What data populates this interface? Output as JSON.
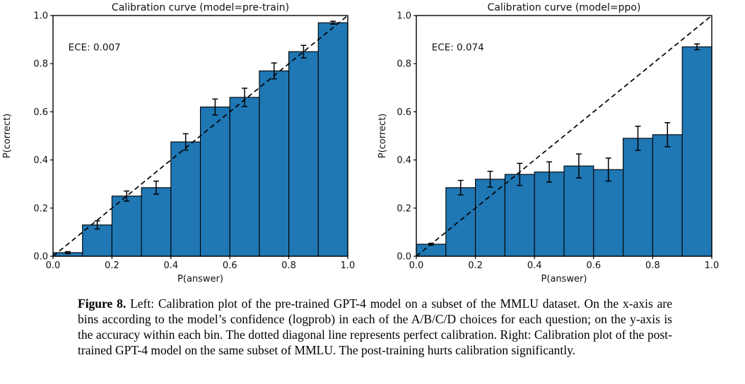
{
  "figure": {
    "caption_label": "Figure 8.",
    "caption_text": "Left: Calibration plot of the pre-trained GPT-4 model on a subset of the MMLU dataset. On the x-axis are bins according to the model’s confidence (logprob) in each of the A/B/C/D choices for each question; on the y-axis is the accuracy within each bin. The dotted diagonal line represents perfect calibration. Right: Calibration plot of the post-trained GPT-4 model on the same subset of MMLU. The post-training hurts calibration significantly."
  },
  "chart_data": [
    {
      "type": "bar",
      "title": "Calibration curve (model=pre-train)",
      "annotation": "ECE: 0.007",
      "xlabel": "P(answer)",
      "ylabel": "P(correct)",
      "xlim": [
        0.0,
        1.0
      ],
      "ylim": [
        0.0,
        1.0
      ],
      "xticks": [
        "0.0",
        "0.2",
        "0.4",
        "0.6",
        "0.8",
        "1.0"
      ],
      "yticks": [
        "0.0",
        "0.2",
        "0.4",
        "0.6",
        "0.8",
        "1.0"
      ],
      "grid": false,
      "legend": null,
      "bin_width": 0.1,
      "bin_left_edges": [
        0.0,
        0.1,
        0.2,
        0.3,
        0.4,
        0.5,
        0.6,
        0.7,
        0.8,
        0.9
      ],
      "values": [
        0.015,
        0.13,
        0.25,
        0.285,
        0.475,
        0.62,
        0.66,
        0.77,
        0.85,
        0.97
      ],
      "errors": [
        0.004,
        0.017,
        0.021,
        0.027,
        0.034,
        0.033,
        0.038,
        0.033,
        0.026,
        0.006
      ],
      "diagonal_line": "perfect calibration (y = x), dashed black",
      "bar_color": "#1f77b4",
      "bar_edge_color": "#000000"
    },
    {
      "type": "bar",
      "title": "Calibration curve (model=ppo)",
      "annotation": "ECE: 0.074",
      "xlabel": "P(answer)",
      "ylabel": "P(correct)",
      "xlim": [
        0.0,
        1.0
      ],
      "ylim": [
        0.0,
        1.0
      ],
      "xticks": [
        "0.0",
        "0.2",
        "0.4",
        "0.6",
        "0.8",
        "1.0"
      ],
      "yticks": [
        "0.0",
        "0.2",
        "0.4",
        "0.6",
        "0.8",
        "1.0"
      ],
      "grid": false,
      "legend": null,
      "bin_width": 0.1,
      "bin_left_edges": [
        0.0,
        0.1,
        0.2,
        0.3,
        0.4,
        0.5,
        0.6,
        0.7,
        0.8,
        0.9
      ],
      "values": [
        0.05,
        0.285,
        0.32,
        0.34,
        0.35,
        0.375,
        0.36,
        0.49,
        0.505,
        0.87
      ],
      "errors": [
        0.004,
        0.03,
        0.033,
        0.046,
        0.042,
        0.05,
        0.048,
        0.05,
        0.05,
        0.012
      ],
      "diagonal_line": "perfect calibration (y = x), dashed black",
      "bar_color": "#1f77b4",
      "bar_edge_color": "#000000"
    }
  ]
}
